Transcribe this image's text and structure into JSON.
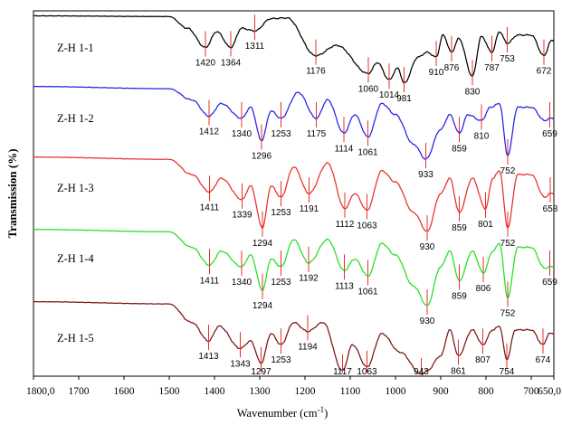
{
  "chart_data": {
    "type": "line",
    "xlabel": "Wavenumber (cm",
    "xlabel_sup": "-1",
    "xlabel_close": ")",
    "ylabel": "Transmission (%)",
    "xlim": [
      1800,
      650
    ],
    "x_reversed": true,
    "x_ticks": [
      "1800,0",
      "1700",
      "1600",
      "1500",
      "1400",
      "1300",
      "1200",
      "1100",
      "1000",
      "900",
      "800",
      "700",
      "650,0"
    ],
    "x_tick_values": [
      1800,
      1700,
      1600,
      1500,
      1400,
      1300,
      1200,
      1100,
      1000,
      900,
      800,
      700,
      650
    ],
    "grid": false,
    "series": [
      {
        "name": "Z-H 1-1",
        "color": "#000000",
        "peak_marker_color": "#e8302a",
        "profile": [
          [
            1800,
            0.02
          ],
          [
            1500,
            0.03
          ],
          [
            1460,
            0.2
          ],
          [
            1420,
            0.48
          ],
          [
            1395,
            0.25
          ],
          [
            1364,
            0.48
          ],
          [
            1340,
            0.2
          ],
          [
            1311,
            0.24
          ],
          [
            1275,
            0.06
          ],
          [
            1240,
            0.05
          ],
          [
            1176,
            0.6
          ],
          [
            1130,
            0.45
          ],
          [
            1060,
            0.86
          ],
          [
            1040,
            0.7
          ],
          [
            1014,
            0.95
          ],
          [
            995,
            0.78
          ],
          [
            981,
            1.0
          ],
          [
            950,
            0.62
          ],
          [
            930,
            0.55
          ],
          [
            910,
            0.62
          ],
          [
            895,
            0.3
          ],
          [
            876,
            0.55
          ],
          [
            860,
            0.35
          ],
          [
            830,
            0.9
          ],
          [
            810,
            0.32
          ],
          [
            787,
            0.55
          ],
          [
            770,
            0.25
          ],
          [
            753,
            0.42
          ],
          [
            730,
            0.3
          ],
          [
            700,
            0.3
          ],
          [
            672,
            0.6
          ],
          [
            655,
            0.38
          ]
        ],
        "peaks": [
          1420,
          1364,
          1311,
          1176,
          1060,
          1014,
          981,
          910,
          876,
          830,
          787,
          753,
          672
        ],
        "peak_labels": [
          "1420",
          "1364",
          "1311",
          "1176",
          "1060",
          "1014",
          "981",
          "910",
          "876",
          "830",
          "787",
          "753",
          "672"
        ]
      },
      {
        "name": "Z-H 1-2",
        "color": "#2323e6",
        "peak_marker_color": "#e8302a",
        "profile": [
          [
            1800,
            0.02
          ],
          [
            1500,
            0.05
          ],
          [
            1450,
            0.2
          ],
          [
            1412,
            0.42
          ],
          [
            1385,
            0.25
          ],
          [
            1340,
            0.45
          ],
          [
            1320,
            0.3
          ],
          [
            1296,
            0.75
          ],
          [
            1275,
            0.35
          ],
          [
            1253,
            0.45
          ],
          [
            1215,
            0.1
          ],
          [
            1175,
            0.45
          ],
          [
            1150,
            0.2
          ],
          [
            1114,
            0.65
          ],
          [
            1090,
            0.4
          ],
          [
            1061,
            0.7
          ],
          [
            1030,
            0.25
          ],
          [
            1000,
            0.4
          ],
          [
            960,
            0.8
          ],
          [
            933,
            1.0
          ],
          [
            900,
            0.6
          ],
          [
            880,
            0.4
          ],
          [
            859,
            0.65
          ],
          [
            840,
            0.4
          ],
          [
            810,
            0.48
          ],
          [
            790,
            0.3
          ],
          [
            770,
            0.25
          ],
          [
            752,
            0.95
          ],
          [
            730,
            0.3
          ],
          [
            700,
            0.3
          ],
          [
            670,
            0.48
          ],
          [
            659,
            0.45
          ]
        ],
        "peaks": [
          1412,
          1340,
          1296,
          1253,
          1175,
          1114,
          1061,
          933,
          859,
          810,
          752,
          659
        ],
        "peak_labels": [
          "1412",
          "1340",
          "1296",
          "1253",
          "1175",
          "1114",
          "1061",
          "933",
          "859",
          "810",
          "752",
          "659"
        ]
      },
      {
        "name": "Z-H 1-3",
        "color": "#e8302a",
        "peak_marker_color": "#e8302a",
        "profile": [
          [
            1800,
            0.02
          ],
          [
            1500,
            0.05
          ],
          [
            1450,
            0.25
          ],
          [
            1411,
            0.48
          ],
          [
            1385,
            0.3
          ],
          [
            1339,
            0.58
          ],
          [
            1320,
            0.4
          ],
          [
            1294,
            0.95
          ],
          [
            1275,
            0.4
          ],
          [
            1253,
            0.55
          ],
          [
            1225,
            0.15
          ],
          [
            1191,
            0.5
          ],
          [
            1150,
            0.1
          ],
          [
            1112,
            0.7
          ],
          [
            1090,
            0.5
          ],
          [
            1063,
            0.72
          ],
          [
            1030,
            0.2
          ],
          [
            1000,
            0.35
          ],
          [
            960,
            0.75
          ],
          [
            930,
            1.0
          ],
          [
            900,
            0.5
          ],
          [
            880,
            0.3
          ],
          [
            859,
            0.75
          ],
          [
            830,
            0.3
          ],
          [
            801,
            0.7
          ],
          [
            785,
            0.3
          ],
          [
            770,
            0.2
          ],
          [
            752,
            0.95
          ],
          [
            730,
            0.25
          ],
          [
            700,
            0.25
          ],
          [
            670,
            0.55
          ],
          [
            658,
            0.5
          ]
        ],
        "peaks": [
          1411,
          1339,
          1294,
          1253,
          1191,
          1112,
          1063,
          930,
          859,
          801,
          752,
          658
        ],
        "peak_labels": [
          "1411",
          "1339",
          "1294",
          "1253",
          "1191",
          "1112",
          "1063",
          "930",
          "859",
          "801",
          "752",
          "658"
        ]
      },
      {
        "name": "Z-H 1-4",
        "color": "#22e022",
        "peak_marker_color": "#e8302a",
        "profile": [
          [
            1800,
            0.02
          ],
          [
            1500,
            0.05
          ],
          [
            1450,
            0.25
          ],
          [
            1411,
            0.48
          ],
          [
            1385,
            0.3
          ],
          [
            1340,
            0.5
          ],
          [
            1320,
            0.35
          ],
          [
            1294,
            0.8
          ],
          [
            1275,
            0.4
          ],
          [
            1253,
            0.5
          ],
          [
            1225,
            0.15
          ],
          [
            1192,
            0.45
          ],
          [
            1150,
            0.15
          ],
          [
            1113,
            0.55
          ],
          [
            1090,
            0.4
          ],
          [
            1061,
            0.62
          ],
          [
            1030,
            0.2
          ],
          [
            1000,
            0.35
          ],
          [
            960,
            0.75
          ],
          [
            930,
            1.0
          ],
          [
            900,
            0.5
          ],
          [
            880,
            0.3
          ],
          [
            859,
            0.68
          ],
          [
            830,
            0.3
          ],
          [
            806,
            0.58
          ],
          [
            785,
            0.3
          ],
          [
            770,
            0.2
          ],
          [
            752,
            0.9
          ],
          [
            730,
            0.25
          ],
          [
            700,
            0.25
          ],
          [
            670,
            0.52
          ],
          [
            659,
            0.5
          ]
        ],
        "peaks": [
          1411,
          1340,
          1294,
          1253,
          1192,
          1113,
          1061,
          930,
          859,
          806,
          752,
          659
        ],
        "peak_labels": [
          "1411",
          "1340",
          "1294",
          "1253",
          "1192",
          "1113",
          "1061",
          "930",
          "859",
          "806",
          "752",
          "659"
        ]
      },
      {
        "name": "Z-H 1-5",
        "color": "#7a1414",
        "peak_marker_color": "#e8302a",
        "profile": [
          [
            1800,
            0.02
          ],
          [
            1500,
            0.05
          ],
          [
            1450,
            0.3
          ],
          [
            1413,
            0.55
          ],
          [
            1390,
            0.35
          ],
          [
            1343,
            0.65
          ],
          [
            1320,
            0.55
          ],
          [
            1297,
            0.85
          ],
          [
            1275,
            0.45
          ],
          [
            1253,
            0.6
          ],
          [
            1225,
            0.3
          ],
          [
            1194,
            0.42
          ],
          [
            1160,
            0.3
          ],
          [
            1117,
            0.95
          ],
          [
            1095,
            0.6
          ],
          [
            1063,
            0.9
          ],
          [
            1030,
            0.45
          ],
          [
            990,
            0.7
          ],
          [
            943,
            1.0
          ],
          [
            930,
            0.95
          ],
          [
            900,
            0.75
          ],
          [
            880,
            0.4
          ],
          [
            861,
            0.75
          ],
          [
            830,
            0.4
          ],
          [
            807,
            0.6
          ],
          [
            785,
            0.4
          ],
          [
            770,
            0.35
          ],
          [
            754,
            0.8
          ],
          [
            735,
            0.4
          ],
          [
            700,
            0.4
          ],
          [
            674,
            0.6
          ],
          [
            660,
            0.45
          ]
        ],
        "peaks": [
          1413,
          1343,
          1297,
          1253,
          1194,
          1117,
          1063,
          943,
          861,
          807,
          754,
          674
        ],
        "peak_labels": [
          "1413",
          "1343",
          "1297",
          "1253",
          "1194",
          "1117",
          "1063",
          "943",
          "861",
          "807",
          "754",
          "674"
        ]
      }
    ]
  }
}
